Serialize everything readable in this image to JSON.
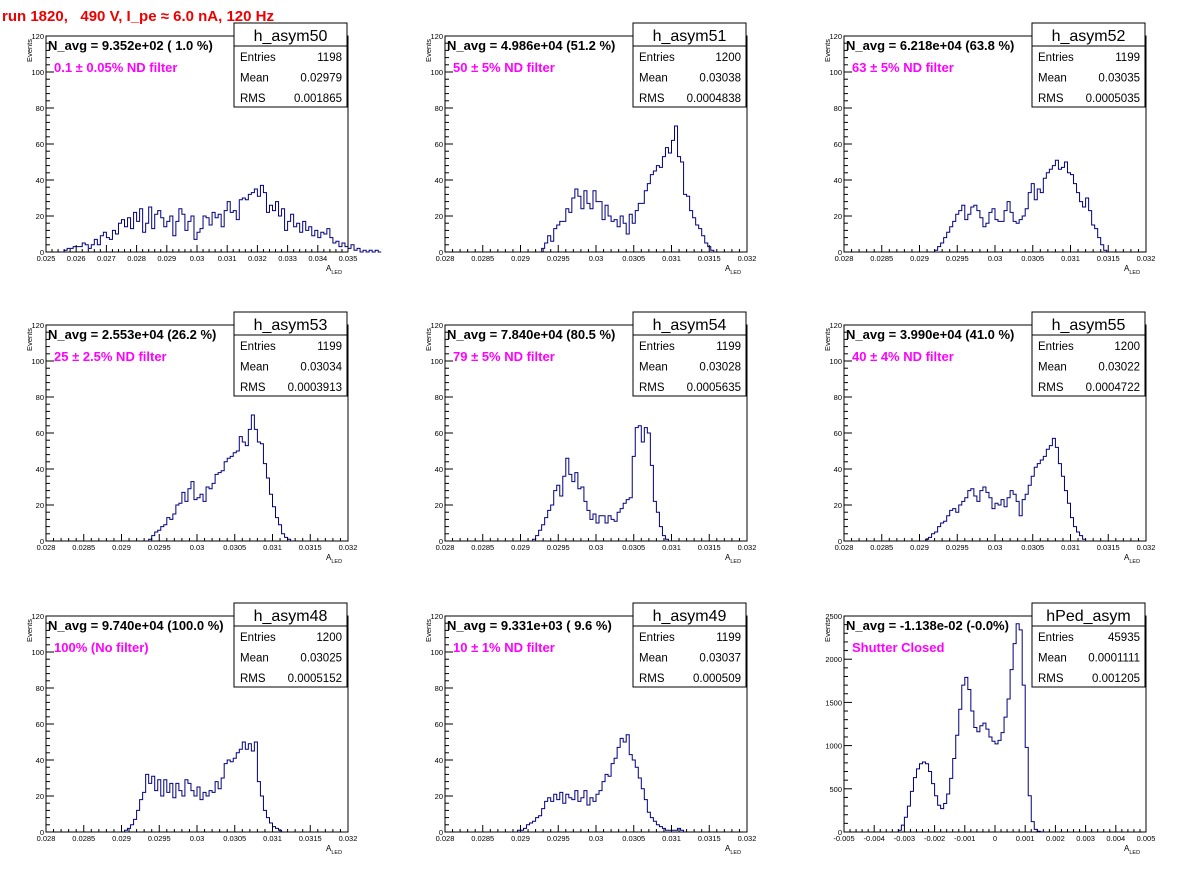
{
  "page_title": "run 1820,   490 V, I_pe ≈ 6.0 nA, 120 Hz",
  "colors": {
    "title": "#ee0000",
    "annotation": "#ff00ff",
    "histogram": "#000080",
    "axis": "#000000"
  },
  "axis_labels": {
    "y": "Events",
    "x_main": "A",
    "x_sub": "LED"
  },
  "stats_labels": {
    "entries": "Entries",
    "mean": "Mean",
    "rms": "RMS"
  },
  "chart_data": [
    {
      "type": "bar",
      "name": "h_asym50",
      "navg": "N_avg = 9.352e+02 ( 1.0 %)",
      "note": "0.1 ± 0.05% ND filter",
      "stats": {
        "entries": "1198",
        "mean": "0.02979",
        "rms": "0.001865"
      },
      "xlim": [
        0.025,
        0.035
      ],
      "ylim": [
        0,
        120
      ],
      "xticks": [
        "0.025",
        "0.026",
        "0.027",
        "0.028",
        "0.029",
        "0.03",
        "0.031",
        "0.032",
        "0.033",
        "0.034",
        "0.035"
      ],
      "yticks": [
        "0",
        "20",
        "40",
        "60",
        "80",
        "100",
        "120"
      ],
      "bin_width": 0.0001,
      "bin_start": 0.0255,
      "values": [
        0,
        1,
        2,
        2,
        3,
        3,
        3,
        5,
        4,
        2,
        4,
        7,
        4,
        9,
        11,
        8,
        7,
        12,
        10,
        16,
        18,
        14,
        19,
        13,
        22,
        17,
        24,
        11,
        16,
        25,
        13,
        21,
        23,
        19,
        14,
        17,
        20,
        9,
        17,
        24,
        21,
        12,
        17,
        20,
        7,
        11,
        13,
        20,
        19,
        15,
        22,
        19,
        21,
        14,
        23,
        28,
        22,
        23,
        18,
        29,
        30,
        29,
        32,
        33,
        35,
        31,
        37,
        33,
        22,
        26,
        23,
        28,
        20,
        24,
        12,
        17,
        21,
        14,
        16,
        11,
        17,
        12,
        14,
        9,
        12,
        8,
        11,
        10,
        13,
        8,
        5,
        6,
        3,
        5,
        3,
        2,
        4,
        1,
        2,
        0,
        1,
        0,
        1,
        0,
        1,
        0
      ]
    },
    {
      "type": "bar",
      "name": "h_asym51",
      "navg": "N_avg = 4.986e+04 (51.2 %)",
      "note": "50 ± 5% ND filter",
      "stats": {
        "entries": "1200",
        "mean": "0.03038",
        "rms": "0.0004838"
      },
      "xlim": [
        0.028,
        0.032
      ],
      "ylim": [
        0,
        120
      ],
      "xticks": [
        "0.028",
        "0.0285",
        "0.029",
        "0.0295",
        "0.03",
        "0.0305",
        "0.031",
        "0.0315",
        "0.032"
      ],
      "yticks": [
        "0",
        "20",
        "40",
        "60",
        "80",
        "100",
        "120"
      ],
      "bin_width": 4e-05,
      "bin_start": 0.02928,
      "values": [
        2,
        5,
        9,
        6,
        13,
        15,
        17,
        17,
        24,
        22,
        30,
        35,
        31,
        24,
        34,
        27,
        24,
        34,
        28,
        28,
        18,
        26,
        20,
        17,
        18,
        14,
        20,
        16,
        10,
        21,
        16,
        23,
        27,
        27,
        34,
        38,
        43,
        45,
        48,
        47,
        53,
        58,
        55,
        62,
        70,
        53,
        50,
        32,
        31,
        23,
        19,
        15,
        13,
        9,
        5,
        3,
        1
      ]
    },
    {
      "type": "bar",
      "name": "h_asym52",
      "navg": "N_avg = 6.218e+04 (63.8 %)",
      "note": "63 ± 5% ND filter",
      "stats": {
        "entries": "1199",
        "mean": "0.03035",
        "rms": "0.0005035"
      },
      "xlim": [
        0.028,
        0.032
      ],
      "ylim": [
        0,
        120
      ],
      "xticks": [
        "0.028",
        "0.0285",
        "0.029",
        "0.0295",
        "0.03",
        "0.0305",
        "0.031",
        "0.0315",
        "0.032"
      ],
      "yticks": [
        "0",
        "20",
        "40",
        "60",
        "80",
        "100",
        "120"
      ],
      "bin_width": 4e-05,
      "bin_start": 0.0292,
      "values": [
        1,
        3,
        5,
        8,
        11,
        14,
        17,
        21,
        23,
        26,
        18,
        21,
        25,
        26,
        23,
        19,
        14,
        16,
        22,
        24,
        18,
        17,
        17,
        23,
        28,
        22,
        17,
        16,
        18,
        20,
        24,
        33,
        38,
        29,
        35,
        33,
        41,
        44,
        46,
        48,
        51,
        46,
        47,
        50,
        44,
        43,
        38,
        33,
        28,
        25,
        30,
        23,
        15,
        13,
        8,
        4,
        1
      ]
    },
    {
      "type": "bar",
      "name": "h_asym53",
      "navg": "N_avg = 2.553e+04 (26.2 %)",
      "note": "25 ± 2.5% ND filter",
      "stats": {
        "entries": "1199",
        "mean": "0.03034",
        "rms": "0.0003913"
      },
      "xlim": [
        0.028,
        0.032
      ],
      "ylim": [
        0,
        120
      ],
      "xticks": [
        "0.028",
        "0.0285",
        "0.029",
        "0.0295",
        "0.03",
        "0.0305",
        "0.031",
        "0.0315",
        "0.032"
      ],
      "yticks": [
        "0",
        "20",
        "40",
        "60",
        "80",
        "100",
        "120"
      ],
      "bin_width": 4e-05,
      "bin_start": 0.02936,
      "values": [
        1,
        3,
        5,
        6,
        8,
        9,
        13,
        12,
        15,
        20,
        21,
        27,
        22,
        29,
        33,
        23,
        24,
        26,
        22,
        30,
        29,
        32,
        37,
        38,
        39,
        44,
        46,
        47,
        49,
        50,
        58,
        55,
        53,
        62,
        70,
        62,
        55,
        54,
        43,
        35,
        26,
        19,
        13,
        9,
        4,
        2,
        1
      ]
    },
    {
      "type": "bar",
      "name": "h_asym54",
      "navg": "N_avg = 7.840e+04 (80.5 %)",
      "note": "79 ± 5% ND filter",
      "stats": {
        "entries": "1199",
        "mean": "0.03028",
        "rms": "0.0005635"
      },
      "xlim": [
        0.028,
        0.032
      ],
      "ylim": [
        0,
        120
      ],
      "xticks": [
        "0.028",
        "0.0285",
        "0.029",
        "0.0295",
        "0.03",
        "0.0305",
        "0.031",
        "0.0315",
        "0.032"
      ],
      "yticks": [
        "0",
        "20",
        "40",
        "60",
        "80",
        "100",
        "120"
      ],
      "bin_width": 4e-05,
      "bin_start": 0.02916,
      "values": [
        1,
        3,
        6,
        9,
        13,
        17,
        20,
        28,
        31,
        25,
        36,
        46,
        37,
        33,
        38,
        29,
        30,
        22,
        17,
        12,
        15,
        10,
        14,
        14,
        10,
        14,
        12,
        11,
        16,
        18,
        21,
        23,
        24,
        47,
        63,
        64,
        55,
        63,
        60,
        42,
        22,
        16,
        8,
        3,
        1
      ]
    },
    {
      "type": "bar",
      "name": "h_asym55",
      "navg": "N_avg = 3.990e+04 (41.0 %)",
      "note": "40 ± 4% ND filter",
      "stats": {
        "entries": "1200",
        "mean": "0.03022",
        "rms": "0.0004722"
      },
      "xlim": [
        0.028,
        0.032
      ],
      "ylim": [
        0,
        120
      ],
      "xticks": [
        "0.028",
        "0.0285",
        "0.029",
        "0.0295",
        "0.03",
        "0.0305",
        "0.031",
        "0.0315",
        "0.032"
      ],
      "yticks": [
        "0",
        "20",
        "40",
        "60",
        "80",
        "100",
        "120"
      ],
      "bin_width": 4e-05,
      "bin_start": 0.02908,
      "values": [
        1,
        2,
        4,
        5,
        8,
        10,
        11,
        14,
        17,
        18,
        16,
        20,
        22,
        24,
        28,
        29,
        25,
        22,
        28,
        30,
        27,
        24,
        18,
        21,
        20,
        23,
        19,
        24,
        28,
        26,
        22,
        14,
        23,
        26,
        31,
        36,
        41,
        43,
        45,
        47,
        51,
        53,
        57,
        52,
        43,
        36,
        28,
        21,
        13,
        8,
        5,
        3,
        1
      ]
    },
    {
      "type": "bar",
      "name": "h_asym48",
      "navg": "N_avg = 9.740e+04 (100.0 %)",
      "note": "100% (No filter)",
      "stats": {
        "entries": "1200",
        "mean": "0.03025",
        "rms": "0.0005152"
      },
      "xlim": [
        0.028,
        0.032
      ],
      "ylim": [
        0,
        120
      ],
      "xticks": [
        "0.028",
        "0.0285",
        "0.029",
        "0.0295",
        "0.03",
        "0.0305",
        "0.031",
        "0.0315",
        "0.032"
      ],
      "yticks": [
        "0",
        "20",
        "40",
        "60",
        "80",
        "100",
        "120"
      ],
      "bin_width": 4e-05,
      "bin_start": 0.02904,
      "values": [
        1,
        2,
        4,
        7,
        12,
        18,
        22,
        32,
        27,
        31,
        23,
        29,
        20,
        29,
        22,
        27,
        19,
        27,
        23,
        20,
        29,
        27,
        23,
        20,
        25,
        18,
        22,
        20,
        23,
        22,
        28,
        24,
        30,
        38,
        40,
        39,
        41,
        44,
        46,
        50,
        46,
        49,
        45,
        50,
        28,
        20,
        12,
        8,
        5,
        3,
        2,
        1
      ]
    },
    {
      "type": "bar",
      "name": "h_asym49",
      "navg": "N_avg = 9.331e+03 ( 9.6 %)",
      "note": "10 ± 1% ND filter",
      "stats": {
        "entries": "1199",
        "mean": "0.03037",
        "rms": "0.000509"
      },
      "xlim": [
        0.028,
        0.032
      ],
      "ylim": [
        0,
        120
      ],
      "xticks": [
        "0.028",
        "0.0285",
        "0.029",
        "0.0295",
        "0.03",
        "0.0305",
        "0.031",
        "0.0315",
        "0.032"
      ],
      "yticks": [
        "0",
        "20",
        "40",
        "60",
        "80",
        "100",
        "120"
      ],
      "bin_width": 4e-05,
      "bin_start": 0.02896,
      "values": [
        1,
        1,
        2,
        4,
        5,
        6,
        8,
        9,
        13,
        17,
        19,
        17,
        21,
        18,
        22,
        16,
        21,
        19,
        18,
        23,
        17,
        19,
        23,
        15,
        19,
        17,
        21,
        23,
        28,
        32,
        31,
        38,
        41,
        47,
        52,
        50,
        54,
        43,
        40,
        36,
        30,
        24,
        18,
        11,
        8,
        6,
        4,
        3,
        2,
        1,
        1,
        1,
        1,
        2,
        1
      ]
    },
    {
      "type": "bar",
      "name": "hPed_asym",
      "navg": "N_avg = -1.138e-02 (-0.0%)",
      "note": "Shutter Closed",
      "stats": {
        "entries": "45935",
        "mean": "0.0001111",
        "rms": "0.001205"
      },
      "xlim": [
        -0.005,
        0.005
      ],
      "ylim": [
        0,
        2500
      ],
      "xticks": [
        "-0.005",
        "-0.004",
        "-0.003",
        "-0.002",
        "-0.001",
        "0",
        "0.001",
        "0.002",
        "0.003",
        "0.004",
        "0.005"
      ],
      "yticks": [
        "0",
        "500",
        "1000",
        "1500",
        "2000",
        "2500"
      ],
      "bin_width": 0.0001,
      "bin_start": -0.0032,
      "values": [
        20,
        80,
        170,
        300,
        470,
        630,
        730,
        790,
        810,
        790,
        700,
        560,
        420,
        310,
        270,
        330,
        440,
        620,
        850,
        1120,
        1420,
        1700,
        1790,
        1650,
        1400,
        1210,
        1160,
        1230,
        1260,
        1190,
        1100,
        1050,
        1020,
        1060,
        1150,
        1330,
        1540,
        1880,
        2180,
        2410,
        2340,
        1700,
        980,
        420,
        120,
        30,
        8,
        2
      ]
    }
  ]
}
